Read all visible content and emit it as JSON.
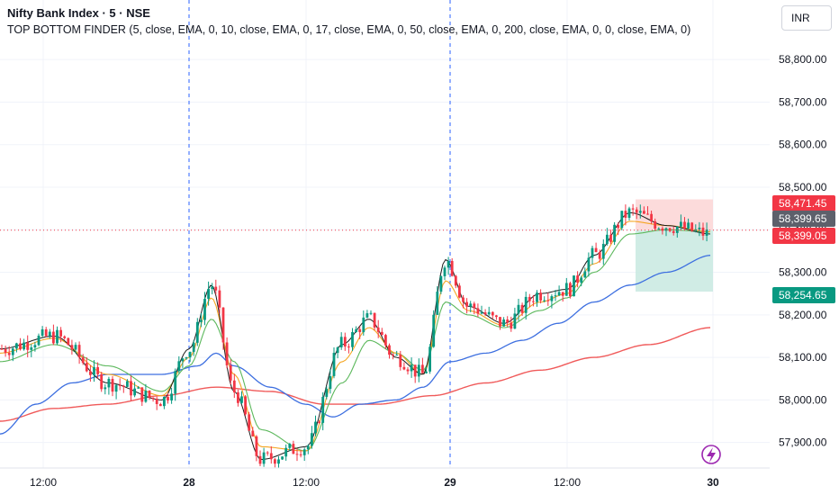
{
  "header": {
    "title": "Nifty Bank Index · 5 · NSE",
    "indicator": "TOP BOTTOM FINDER (5, close, EMA, 0, 10, close, EMA, 0, 17, close, EMA, 0, 50, close, EMA, 0, 200, close, EMA, 0, 0, close, EMA, 0)"
  },
  "currency": "INR",
  "colors": {
    "up": "#089981",
    "down": "#f23645",
    "ema5": "#1b1b1b",
    "ema10": "#f5a623",
    "ema17": "#5cb85c",
    "ema50": "#3d6fe0",
    "ema200": "#f05a5a",
    "zone_top": "#fcd5d5",
    "zone_bottom": "#c8e9e1",
    "price_line": "#f23645",
    "session_line": "#2962ff"
  },
  "chart_data": {
    "type": "candlestick",
    "y_axis": {
      "ylim": [
        57840,
        58940
      ],
      "ticks": [
        "57,900.00",
        "58,000.00",
        "58,100.00",
        "58,200.00",
        "58,300.00",
        "58,400.00",
        "58,500.00",
        "58,600.00",
        "58,700.00",
        "58,800.00"
      ]
    },
    "x_axis": {
      "ticks": [
        "12:00",
        "28",
        "12:00",
        "29",
        "12:00",
        "30"
      ]
    },
    "session_breaks": [
      "28",
      "29"
    ],
    "price_labels": [
      {
        "value": "58,471.45",
        "style": "red"
      },
      {
        "value": "58,399.65",
        "style": "gray"
      },
      {
        "value": "58,399.05",
        "style": "red"
      },
      {
        "value": "58,254.65",
        "style": "green"
      }
    ],
    "last_price": 58399.05,
    "zone": {
      "top": 58471.45,
      "mid": 58399.05,
      "bottom": 58254.65
    },
    "ema_anchors": {
      "ema5": [
        [
          0,
          58120
        ],
        [
          60,
          58150
        ],
        [
          120,
          58040
        ],
        [
          180,
          58000
        ],
        [
          210,
          58120
        ],
        [
          235,
          58270
        ],
        [
          260,
          58020
        ],
        [
          290,
          57860
        ],
        [
          340,
          57890
        ],
        [
          380,
          58130
        ],
        [
          410,
          58190
        ],
        [
          440,
          58100
        ],
        [
          470,
          58060
        ],
        [
          495,
          58330
        ],
        [
          520,
          58220
        ],
        [
          560,
          58180
        ],
        [
          600,
          58250
        ],
        [
          630,
          58260
        ],
        [
          660,
          58340
        ],
        [
          700,
          58440
        ],
        [
          740,
          58410
        ],
        [
          790,
          58390
        ]
      ],
      "ema10": [
        [
          0,
          58110
        ],
        [
          60,
          58145
        ],
        [
          120,
          58060
        ],
        [
          180,
          58010
        ],
        [
          210,
          58100
        ],
        [
          235,
          58240
        ],
        [
          260,
          58060
        ],
        [
          290,
          57890
        ],
        [
          340,
          57880
        ],
        [
          380,
          58090
        ],
        [
          410,
          58170
        ],
        [
          440,
          58110
        ],
        [
          470,
          58060
        ],
        [
          495,
          58280
        ],
        [
          520,
          58210
        ],
        [
          560,
          58175
        ],
        [
          600,
          58230
        ],
        [
          630,
          58250
        ],
        [
          660,
          58320
        ],
        [
          700,
          58420
        ],
        [
          740,
          58410
        ],
        [
          790,
          58395
        ]
      ],
      "ema17": [
        [
          0,
          58090
        ],
        [
          60,
          58130
        ],
        [
          120,
          58080
        ],
        [
          180,
          58020
        ],
        [
          210,
          58080
        ],
        [
          235,
          58190
        ],
        [
          260,
          58090
        ],
        [
          290,
          57930
        ],
        [
          340,
          57880
        ],
        [
          380,
          58040
        ],
        [
          410,
          58140
        ],
        [
          440,
          58110
        ],
        [
          470,
          58070
        ],
        [
          495,
          58230
        ],
        [
          520,
          58200
        ],
        [
          560,
          58170
        ],
        [
          600,
          58210
        ],
        [
          630,
          58240
        ],
        [
          660,
          58300
        ],
        [
          700,
          58390
        ],
        [
          740,
          58400
        ],
        [
          790,
          58395
        ]
      ],
      "ema50": [
        [
          0,
          57920
        ],
        [
          40,
          57990
        ],
        [
          80,
          58040
        ],
        [
          120,
          58060
        ],
        [
          180,
          58060
        ],
        [
          220,
          58080
        ],
        [
          240,
          58110
        ],
        [
          260,
          58080
        ],
        [
          300,
          58030
        ],
        [
          340,
          57990
        ],
        [
          370,
          57960
        ],
        [
          400,
          57990
        ],
        [
          440,
          58000
        ],
        [
          470,
          58030
        ],
        [
          500,
          58090
        ],
        [
          540,
          58110
        ],
        [
          580,
          58140
        ],
        [
          620,
          58180
        ],
        [
          660,
          58230
        ],
        [
          700,
          58270
        ],
        [
          740,
          58300
        ],
        [
          790,
          58340
        ]
      ],
      "ema200": [
        [
          0,
          57950
        ],
        [
          60,
          57980
        ],
        [
          120,
          57990
        ],
        [
          180,
          58010
        ],
        [
          240,
          58030
        ],
        [
          300,
          58020
        ],
        [
          360,
          57990
        ],
        [
          420,
          57990
        ],
        [
          480,
          58010
        ],
        [
          540,
          58040
        ],
        [
          600,
          58070
        ],
        [
          660,
          58100
        ],
        [
          720,
          58130
        ],
        [
          790,
          58170
        ]
      ]
    }
  },
  "icons": {
    "flash": "flash-icon"
  }
}
